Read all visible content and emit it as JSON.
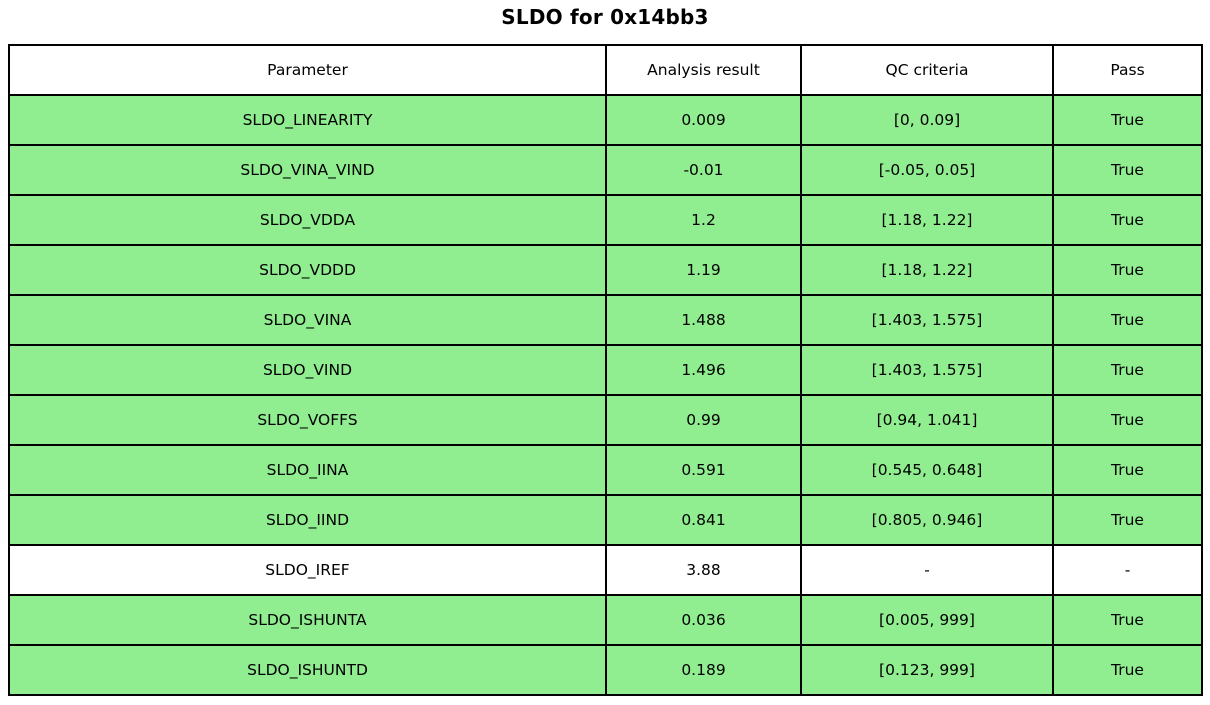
{
  "title": "SLDO for 0x14bb3",
  "chart_data": {
    "type": "table",
    "title": "SLDO for 0x14bb3",
    "columns": [
      "Parameter",
      "Analysis result",
      "QC criteria",
      "Pass"
    ],
    "rows": [
      {
        "parameter": "SLDO_LINEARITY",
        "result": "0.009",
        "criteria": "[0, 0.09]",
        "pass": "True",
        "highlight": true
      },
      {
        "parameter": "SLDO_VINA_VIND",
        "result": "-0.01",
        "criteria": "[-0.05, 0.05]",
        "pass": "True",
        "highlight": true
      },
      {
        "parameter": "SLDO_VDDA",
        "result": "1.2",
        "criteria": "[1.18, 1.22]",
        "pass": "True",
        "highlight": true
      },
      {
        "parameter": "SLDO_VDDD",
        "result": "1.19",
        "criteria": "[1.18, 1.22]",
        "pass": "True",
        "highlight": true
      },
      {
        "parameter": "SLDO_VINA",
        "result": "1.488",
        "criteria": "[1.403, 1.575]",
        "pass": "True",
        "highlight": true
      },
      {
        "parameter": "SLDO_VIND",
        "result": "1.496",
        "criteria": "[1.403, 1.575]",
        "pass": "True",
        "highlight": true
      },
      {
        "parameter": "SLDO_VOFFS",
        "result": "0.99",
        "criteria": "[0.94, 1.041]",
        "pass": "True",
        "highlight": true
      },
      {
        "parameter": "SLDO_IINA",
        "result": "0.591",
        "criteria": "[0.545, 0.648]",
        "pass": "True",
        "highlight": true
      },
      {
        "parameter": "SLDO_IIND",
        "result": "0.841",
        "criteria": "[0.805, 0.946]",
        "pass": "True",
        "highlight": true
      },
      {
        "parameter": "SLDO_IREF",
        "result": "3.88",
        "criteria": "-",
        "pass": "-",
        "highlight": false
      },
      {
        "parameter": "SLDO_ISHUNTA",
        "result": "0.036",
        "criteria": "[0.005, 999]",
        "pass": "True",
        "highlight": true
      },
      {
        "parameter": "SLDO_ISHUNTD",
        "result": "0.189",
        "criteria": "[0.123, 999]",
        "pass": "True",
        "highlight": true
      }
    ],
    "colors": {
      "pass_row": "#90EE90",
      "neutral_row": "#ffffff",
      "border": "#000000"
    }
  }
}
